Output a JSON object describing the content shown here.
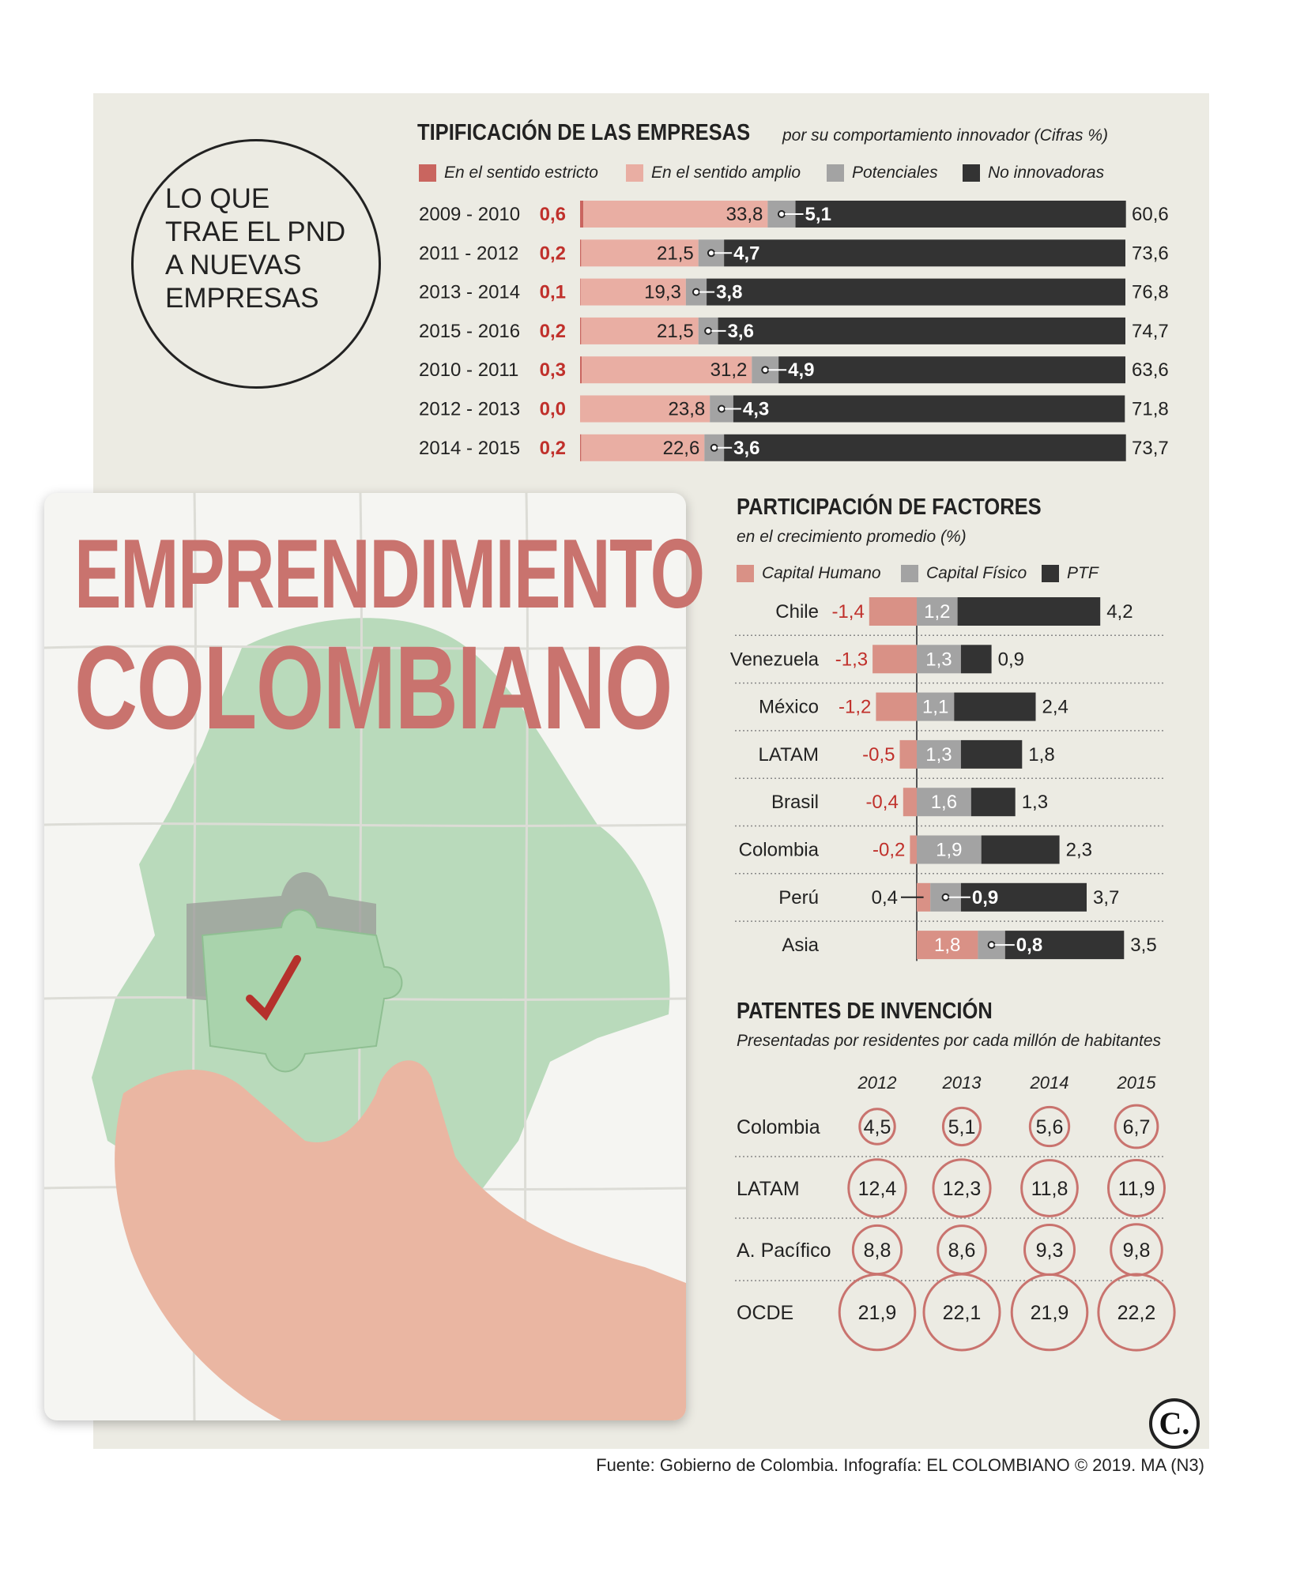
{
  "graphic": {
    "circle_title": "LO QUE\nTRAE EL PND\nA NUEVAS\nEMPRESAS",
    "big_title_1": "EMPRENDIMIENTO",
    "big_title_2": "COLOMBIANO",
    "source": "Fuente: Gobierno de Colombia. Infografía: EL COLOMBIANO © 2019. MA (N3)",
    "logo": "C."
  },
  "colors": {
    "strict": "#c9655f",
    "broad": "#e9aea3",
    "potential": "#a3a3a3",
    "non_innovative": "#333333",
    "human_capital": "#d99186",
    "physical_capital": "#a3a3a3",
    "ptf": "#333333",
    "negative_text": "#c0302b",
    "circle": "#c9736e",
    "map_green": "#b3d7b5"
  },
  "chart_data": [
    {
      "type": "bar",
      "title": "TIPIFICACIÓN DE LAS EMPRESAS",
      "subtitle": "por su comportamiento innovador (Cifras %)",
      "stacked": true,
      "orientation": "horizontal",
      "categories": [
        "2009 - 2010",
        "2011 - 2012",
        "2013 - 2014",
        "2015 - 2016",
        "2010 - 2011",
        "2012 - 2013",
        "2014 - 2015"
      ],
      "series": [
        {
          "name": "En el sentido estricto",
          "values": [
            0.6,
            0.2,
            0.1,
            0.2,
            0.3,
            0.0,
            0.2
          ],
          "labels": [
            "0,6",
            "0,2",
            "0,1",
            "0,2",
            "0,3",
            "0,0",
            "0,2"
          ]
        },
        {
          "name": "En el sentido amplio",
          "values": [
            33.8,
            21.5,
            19.3,
            21.5,
            31.2,
            23.8,
            22.6
          ],
          "labels": [
            "33,8",
            "21,5",
            "19,3",
            "21,5",
            "31,2",
            "23,8",
            "22,6"
          ]
        },
        {
          "name": "Potenciales",
          "values": [
            5.1,
            4.7,
            3.8,
            3.6,
            4.9,
            4.3,
            3.6
          ],
          "labels": [
            "5,1",
            "4,7",
            "3,8",
            "3,6",
            "4,9",
            "4,3",
            "3,6"
          ]
        },
        {
          "name": "No innovadoras",
          "values": [
            60.6,
            73.6,
            76.8,
            74.7,
            63.6,
            71.8,
            73.7
          ],
          "labels": [
            "60,6",
            "73,6",
            "76,8",
            "74,7",
            "63,6",
            "71,8",
            "73,7"
          ]
        }
      ],
      "xlim": [
        0,
        100
      ]
    },
    {
      "type": "bar",
      "title": "PARTICIPACIÓN DE FACTORES",
      "subtitle": "en el crecimiento promedio (%)",
      "stacked": true,
      "orientation": "horizontal",
      "categories": [
        "Chile",
        "Venezuela",
        "México",
        "LATAM",
        "Brasil",
        "Colombia",
        "Perú",
        "Asia"
      ],
      "series": [
        {
          "name": "Capital Humano",
          "values": [
            -1.4,
            -1.3,
            -1.2,
            -0.5,
            -0.4,
            -0.2,
            0.4,
            1.8
          ],
          "labels": [
            "-1,4",
            "-1,3",
            "-1,2",
            "-0,5",
            "-0,4",
            "-0,2",
            "0,4",
            "1,8"
          ]
        },
        {
          "name": "Capital Físico",
          "values": [
            1.2,
            1.3,
            1.1,
            1.3,
            1.6,
            1.9,
            0.9,
            0.8
          ],
          "labels": [
            "1,2",
            "1,3",
            "1,1",
            "1,3",
            "1,6",
            "1,9",
            "0,9",
            "0,8"
          ]
        },
        {
          "name": "PTF",
          "values": [
            4.2,
            0.9,
            2.4,
            1.8,
            1.3,
            2.3,
            3.7,
            3.5
          ],
          "labels": [
            "4,2",
            "0,9",
            "2,4",
            "1,8",
            "1,3",
            "2,3",
            "3,7",
            "3,5"
          ]
        }
      ]
    },
    {
      "type": "table",
      "title": "PATENTES DE INVENCIÓN",
      "subtitle": "Presentadas por residentes por cada millón de habitantes",
      "columns": [
        "2012",
        "2013",
        "2014",
        "2015"
      ],
      "rows": [
        {
          "name": "Colombia",
          "values": [
            4.5,
            5.1,
            5.6,
            6.7
          ],
          "labels": [
            "4,5",
            "5,1",
            "5,6",
            "6,7"
          ]
        },
        {
          "name": "LATAM",
          "values": [
            12.4,
            12.3,
            11.8,
            11.9
          ],
          "labels": [
            "12,4",
            "12,3",
            "11,8",
            "11,9"
          ]
        },
        {
          "name": "A. Pacífico",
          "values": [
            8.8,
            8.6,
            9.3,
            9.8
          ],
          "labels": [
            "8,8",
            "8,6",
            "9,3",
            "9,8"
          ]
        },
        {
          "name": "OCDE",
          "values": [
            21.9,
            22.1,
            21.9,
            22.2
          ],
          "labels": [
            "21,9",
            "22,1",
            "21,9",
            "22,2"
          ]
        }
      ]
    }
  ]
}
